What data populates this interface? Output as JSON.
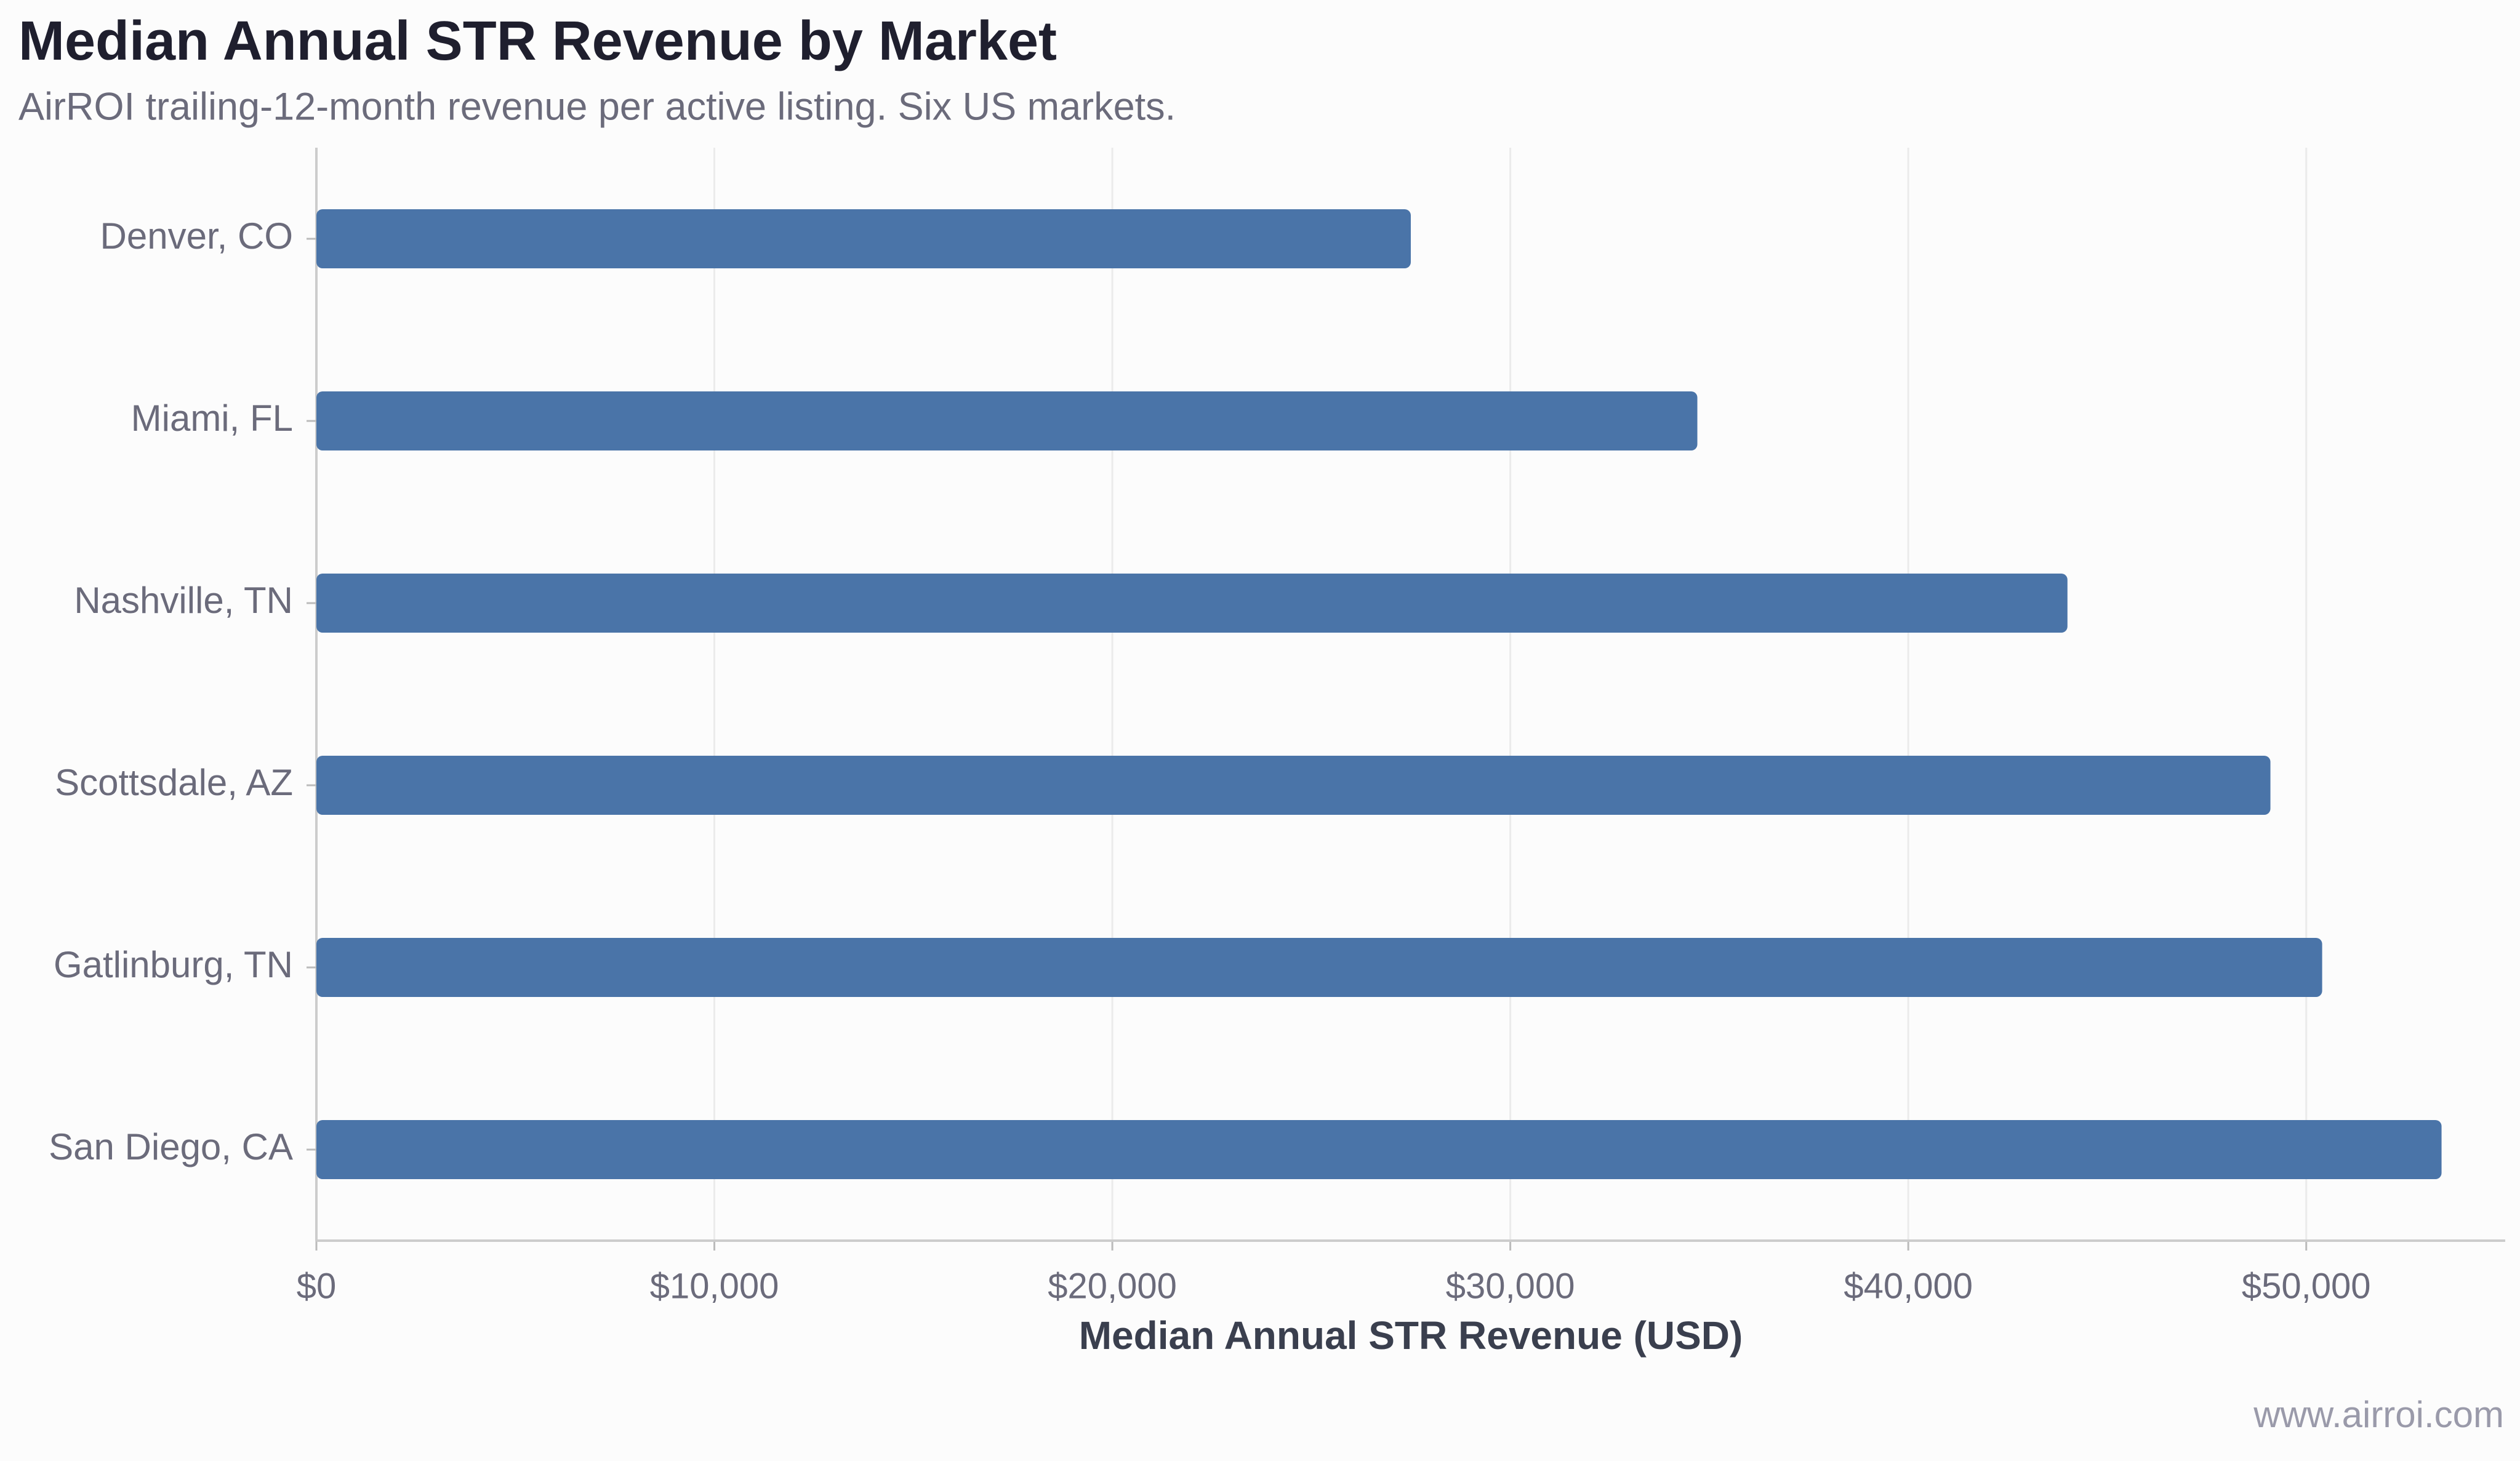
{
  "chart_data": {
    "type": "bar",
    "orientation": "horizontal",
    "title": "Median Annual STR Revenue by Market",
    "subtitle": "AirROI trailing-12-month revenue per active listing. Six US markets.",
    "x_label": "Median Annual STR Revenue (USD)",
    "footer": "www.airroi.com",
    "categories": [
      "Denver, CO",
      "Miami, FL",
      "Nashville, TN",
      "Scottsdale, AZ",
      "Gatlinburg, TN",
      "San Diego, CA"
    ],
    "values": [
      27500,
      34700,
      44000,
      49100,
      50400,
      53400
    ],
    "color": "#4a74a8",
    "xlim": [
      0,
      55000
    ],
    "xticks": [
      {
        "value": 0,
        "label": "$0"
      },
      {
        "value": 10000,
        "label": "$10,000"
      },
      {
        "value": 20000,
        "label": "$20,000"
      },
      {
        "value": 30000,
        "label": "$30,000"
      },
      {
        "value": 40000,
        "label": "$40,000"
      },
      {
        "value": 50000,
        "label": "$50,000"
      }
    ],
    "grid": true
  }
}
